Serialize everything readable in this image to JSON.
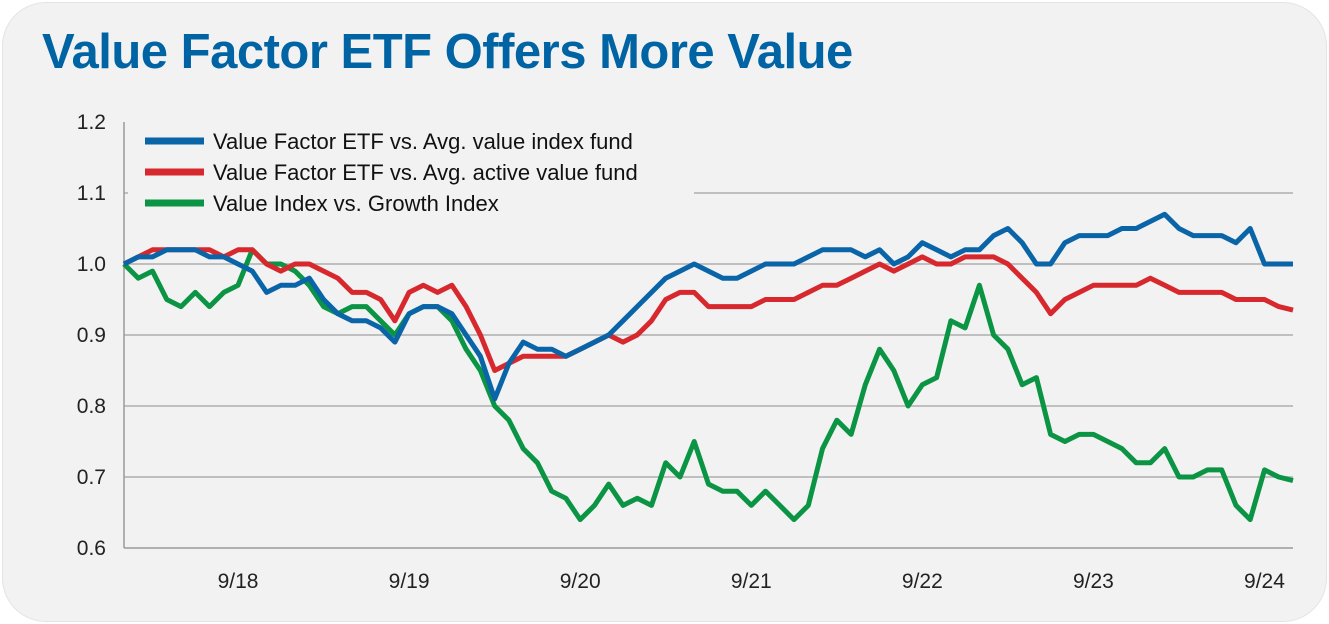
{
  "title": "Value Factor ETF Offers More Value",
  "chart_data": {
    "type": "line",
    "title": "Value Factor ETF Offers More Value",
    "xlabel": "",
    "ylabel": "",
    "ylim": [
      0.6,
      1.2
    ],
    "yticks": [
      "0.6",
      "0.7",
      "0.8",
      "0.9",
      "1.0",
      "1.1",
      "1.2"
    ],
    "xlim": [
      "2018-01",
      "2024-11"
    ],
    "xticks": [
      {
        "label": "9/18",
        "date": "2018-09"
      },
      {
        "label": "9/19",
        "date": "2019-09"
      },
      {
        "label": "9/20",
        "date": "2020-09"
      },
      {
        "label": "9/21",
        "date": "2021-09"
      },
      {
        "label": "9/22",
        "date": "2022-09"
      },
      {
        "label": "9/23",
        "date": "2023-09"
      },
      {
        "label": "9/24",
        "date": "2024-09"
      }
    ],
    "grid": "horizontal",
    "legend_position": "top-left",
    "x": [
      "2018-01",
      "2018-02",
      "2018-03",
      "2018-04",
      "2018-05",
      "2018-06",
      "2018-07",
      "2018-08",
      "2018-09",
      "2018-10",
      "2018-11",
      "2018-12",
      "2019-01",
      "2019-02",
      "2019-03",
      "2019-04",
      "2019-05",
      "2019-06",
      "2019-07",
      "2019-08",
      "2019-09",
      "2019-10",
      "2019-11",
      "2019-12",
      "2020-01",
      "2020-02",
      "2020-03",
      "2020-04",
      "2020-05",
      "2020-06",
      "2020-07",
      "2020-08",
      "2020-09",
      "2020-10",
      "2020-11",
      "2020-12",
      "2021-01",
      "2021-02",
      "2021-03",
      "2021-04",
      "2021-05",
      "2021-06",
      "2021-07",
      "2021-08",
      "2021-09",
      "2021-10",
      "2021-11",
      "2021-12",
      "2022-01",
      "2022-02",
      "2022-03",
      "2022-04",
      "2022-05",
      "2022-06",
      "2022-07",
      "2022-08",
      "2022-09",
      "2022-10",
      "2022-11",
      "2022-12",
      "2023-01",
      "2023-02",
      "2023-03",
      "2023-04",
      "2023-05",
      "2023-06",
      "2023-07",
      "2023-08",
      "2023-09",
      "2023-10",
      "2023-11",
      "2023-12",
      "2024-01",
      "2024-02",
      "2024-03",
      "2024-04",
      "2024-05",
      "2024-06",
      "2024-07",
      "2024-08",
      "2024-09",
      "2024-10",
      "2024-11"
    ],
    "series": [
      {
        "name": "Value Factor ETF vs. Avg. value index fund",
        "color": "#0a64a8",
        "values": [
          1.0,
          1.01,
          1.01,
          1.02,
          1.02,
          1.02,
          1.01,
          1.01,
          1.0,
          0.99,
          0.96,
          0.97,
          0.97,
          0.98,
          0.95,
          0.93,
          0.92,
          0.92,
          0.91,
          0.89,
          0.93,
          0.94,
          0.94,
          0.93,
          0.9,
          0.87,
          0.81,
          0.86,
          0.89,
          0.88,
          0.88,
          0.87,
          0.88,
          0.89,
          0.9,
          0.92,
          0.94,
          0.96,
          0.98,
          0.99,
          1.0,
          0.99,
          0.98,
          0.98,
          0.99,
          1.0,
          1.0,
          1.0,
          1.01,
          1.02,
          1.02,
          1.02,
          1.01,
          1.02,
          1.0,
          1.01,
          1.03,
          1.02,
          1.01,
          1.02,
          1.02,
          1.04,
          1.05,
          1.03,
          1.0,
          1.0,
          1.03,
          1.04,
          1.04,
          1.04,
          1.05,
          1.05,
          1.06,
          1.07,
          1.05,
          1.04,
          1.04,
          1.04,
          1.03,
          1.05,
          1.0,
          1.0,
          1.0
        ]
      },
      {
        "name": "Value Factor ETF vs. Avg. active value fund",
        "color": "#d7282e",
        "values": [
          1.0,
          1.01,
          1.02,
          1.02,
          1.02,
          1.02,
          1.02,
          1.01,
          1.02,
          1.02,
          1.0,
          0.99,
          1.0,
          1.0,
          0.99,
          0.98,
          0.96,
          0.96,
          0.95,
          0.92,
          0.96,
          0.97,
          0.96,
          0.97,
          0.94,
          0.9,
          0.85,
          0.86,
          0.87,
          0.87,
          0.87,
          0.87,
          0.88,
          0.89,
          0.9,
          0.89,
          0.9,
          0.92,
          0.95,
          0.96,
          0.96,
          0.94,
          0.94,
          0.94,
          0.94,
          0.95,
          0.95,
          0.95,
          0.96,
          0.97,
          0.97,
          0.98,
          0.99,
          1.0,
          0.99,
          1.0,
          1.01,
          1.0,
          1.0,
          1.01,
          1.01,
          1.01,
          1.0,
          0.98,
          0.96,
          0.93,
          0.95,
          0.96,
          0.97,
          0.97,
          0.97,
          0.97,
          0.98,
          0.97,
          0.96,
          0.96,
          0.96,
          0.96,
          0.95,
          0.95,
          0.95,
          0.94,
          0.935
        ]
      },
      {
        "name": "Value Index vs. Growth Index",
        "color": "#0a9444",
        "values": [
          1.0,
          0.98,
          0.99,
          0.95,
          0.94,
          0.96,
          0.94,
          0.96,
          0.97,
          1.02,
          1.0,
          1.0,
          0.99,
          0.97,
          0.94,
          0.93,
          0.94,
          0.94,
          0.92,
          0.9,
          0.93,
          0.94,
          0.94,
          0.92,
          0.88,
          0.85,
          0.8,
          0.78,
          0.74,
          0.72,
          0.68,
          0.67,
          0.64,
          0.66,
          0.69,
          0.66,
          0.67,
          0.66,
          0.72,
          0.7,
          0.75,
          0.69,
          0.68,
          0.68,
          0.66,
          0.68,
          0.66,
          0.64,
          0.66,
          0.74,
          0.78,
          0.76,
          0.83,
          0.88,
          0.85,
          0.8,
          0.83,
          0.84,
          0.92,
          0.91,
          0.97,
          0.9,
          0.88,
          0.83,
          0.84,
          0.76,
          0.75,
          0.76,
          0.76,
          0.75,
          0.74,
          0.72,
          0.72,
          0.74,
          0.7,
          0.7,
          0.71,
          0.71,
          0.66,
          0.64,
          0.71,
          0.7,
          0.695
        ]
      }
    ]
  }
}
